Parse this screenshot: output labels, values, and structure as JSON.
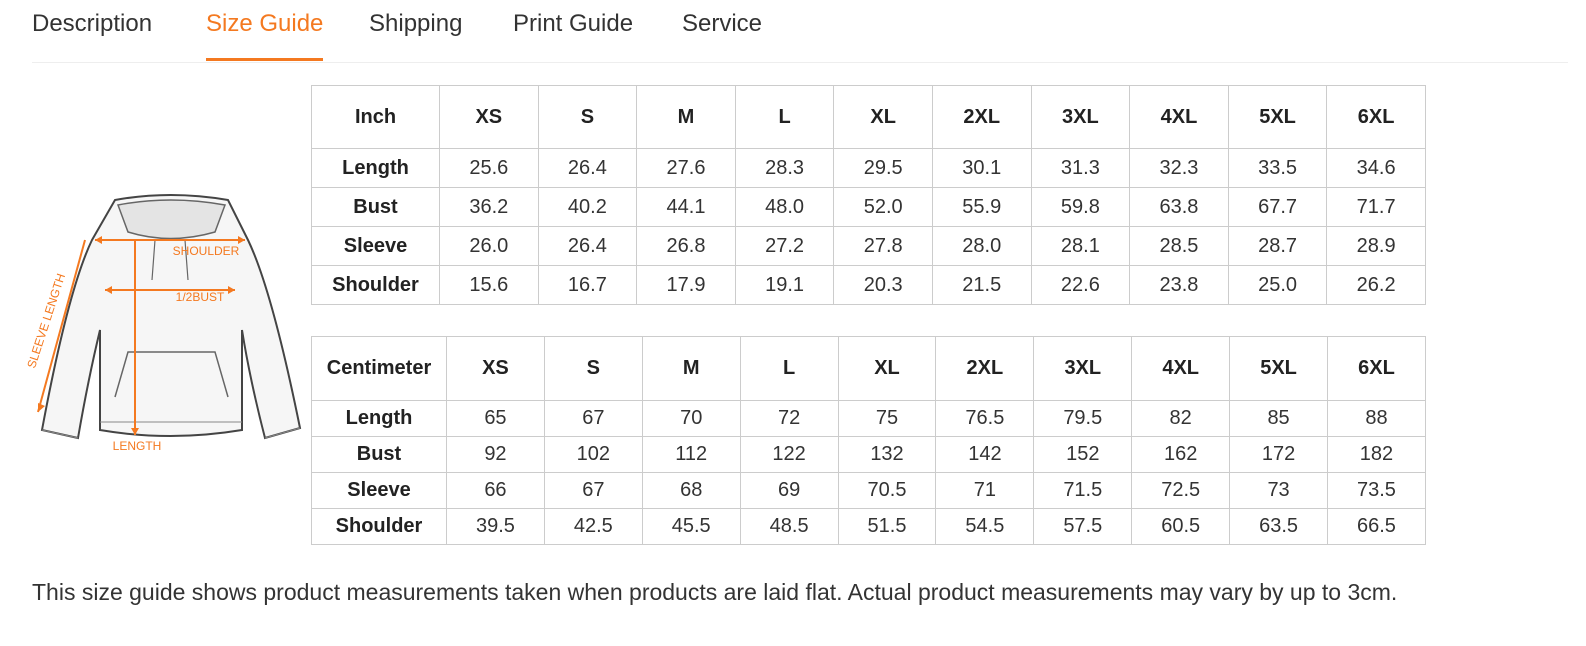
{
  "tabs": [
    "Description",
    "Size Guide",
    "Shipping",
    "Print Guide",
    "Service"
  ],
  "illustration": {
    "labels": [
      "SHOULDER",
      "1/2BUST",
      "SLEEVE LENGTH",
      "LENGTH"
    ]
  },
  "inch_table": {
    "header": [
      "Inch",
      "XS",
      "S",
      "M",
      "L",
      "XL",
      "2XL",
      "3XL",
      "4XL",
      "5XL",
      "6XL"
    ],
    "rows": [
      [
        "Length",
        "25.6",
        "26.4",
        "27.6",
        "28.3",
        "29.5",
        "30.1",
        "31.3",
        "32.3",
        "33.5",
        "34.6"
      ],
      [
        "Bust",
        "36.2",
        "40.2",
        "44.1",
        "48.0",
        "52.0",
        "55.9",
        "59.8",
        "63.8",
        "67.7",
        "71.7"
      ],
      [
        "Sleeve",
        "26.0",
        "26.4",
        "26.8",
        "27.2",
        "27.8",
        "28.0",
        "28.1",
        "28.5",
        "28.7",
        "28.9"
      ],
      [
        "Shoulder",
        "15.6",
        "16.7",
        "17.9",
        "19.1",
        "20.3",
        "21.5",
        "22.6",
        "23.8",
        "25.0",
        "26.2"
      ]
    ]
  },
  "cm_table": {
    "header": [
      "Centimeter",
      "XS",
      "S",
      "M",
      "L",
      "XL",
      "2XL",
      "3XL",
      "4XL",
      "5XL",
      "6XL"
    ],
    "rows": [
      [
        "Length",
        "65",
        "67",
        "70",
        "72",
        "75",
        "76.5",
        "79.5",
        "82",
        "85",
        "88"
      ],
      [
        "Bust",
        "92",
        "102",
        "112",
        "122",
        "132",
        "142",
        "152",
        "162",
        "172",
        "182"
      ],
      [
        "Sleeve",
        "66",
        "67",
        "68",
        "69",
        "70.5",
        "71",
        "71.5",
        "72.5",
        "73",
        "73.5"
      ],
      [
        "Shoulder",
        "39.5",
        "42.5",
        "45.5",
        "48.5",
        "51.5",
        "54.5",
        "57.5",
        "60.5",
        "63.5",
        "66.5"
      ]
    ]
  },
  "note": "This size guide shows product measurements taken when products are laid flat. Actual product measurements may vary by up to 3cm."
}
